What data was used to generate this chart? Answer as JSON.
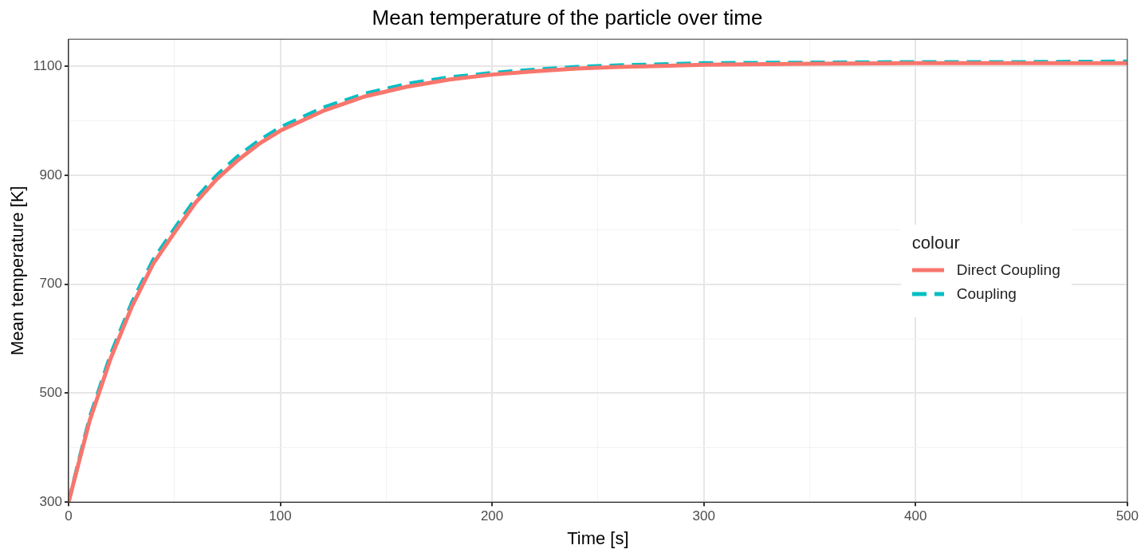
{
  "chart_data": {
    "type": "line",
    "title": "Mean temperature of the particle over time",
    "xlabel": "Time [s]",
    "ylabel": "Mean temperature [K]",
    "legend_title": "colour",
    "legend": "right",
    "grid": true,
    "marker": "none",
    "xlim": [
      0,
      500
    ],
    "ylim": [
      300,
      1150
    ],
    "xticks": [
      0,
      {
        "value": 50,
        "label": null
      },
      100,
      {
        "value": 150,
        "label": null
      },
      200,
      {
        "value": 250,
        "label": null
      },
      300,
      {
        "value": 350,
        "label": null
      },
      400,
      {
        "value": 450,
        "label": null
      },
      500
    ],
    "yticks": [
      300,
      {
        "value": 400,
        "label": null
      },
      500,
      {
        "value": 600,
        "label": null
      },
      700,
      {
        "value": 800,
        "label": null
      },
      900,
      {
        "value": 1000,
        "label": null
      },
      1100
    ],
    "x": [
      0,
      10,
      20,
      30,
      40,
      50,
      60,
      70,
      80,
      90,
      100,
      120,
      140,
      160,
      180,
      200,
      220,
      240,
      260,
      280,
      300,
      350,
      400,
      450,
      500
    ],
    "series": [
      {
        "name": "Direct Coupling",
        "color": "#f8766d",
        "line_style": "solid",
        "values": [
          300,
          450,
          565,
          660,
          738,
          795,
          850,
          893,
          928,
          958,
          982,
          1018,
          1045,
          1063,
          1076,
          1085,
          1091,
          1096,
          1099,
          1101,
          1103,
          1105,
          1106,
          1106,
          1106
        ]
      },
      {
        "name": "Coupling",
        "color": "#00bfc4",
        "line_style": "dashed",
        "values": [
          300,
          455,
          572,
          667,
          745,
          802,
          857,
          900,
          935,
          964,
          988,
          1024,
          1050,
          1068,
          1080,
          1088,
          1094,
          1099,
          1102,
          1104,
          1106,
          1107,
          1108,
          1108,
          1109
        ]
      }
    ]
  }
}
